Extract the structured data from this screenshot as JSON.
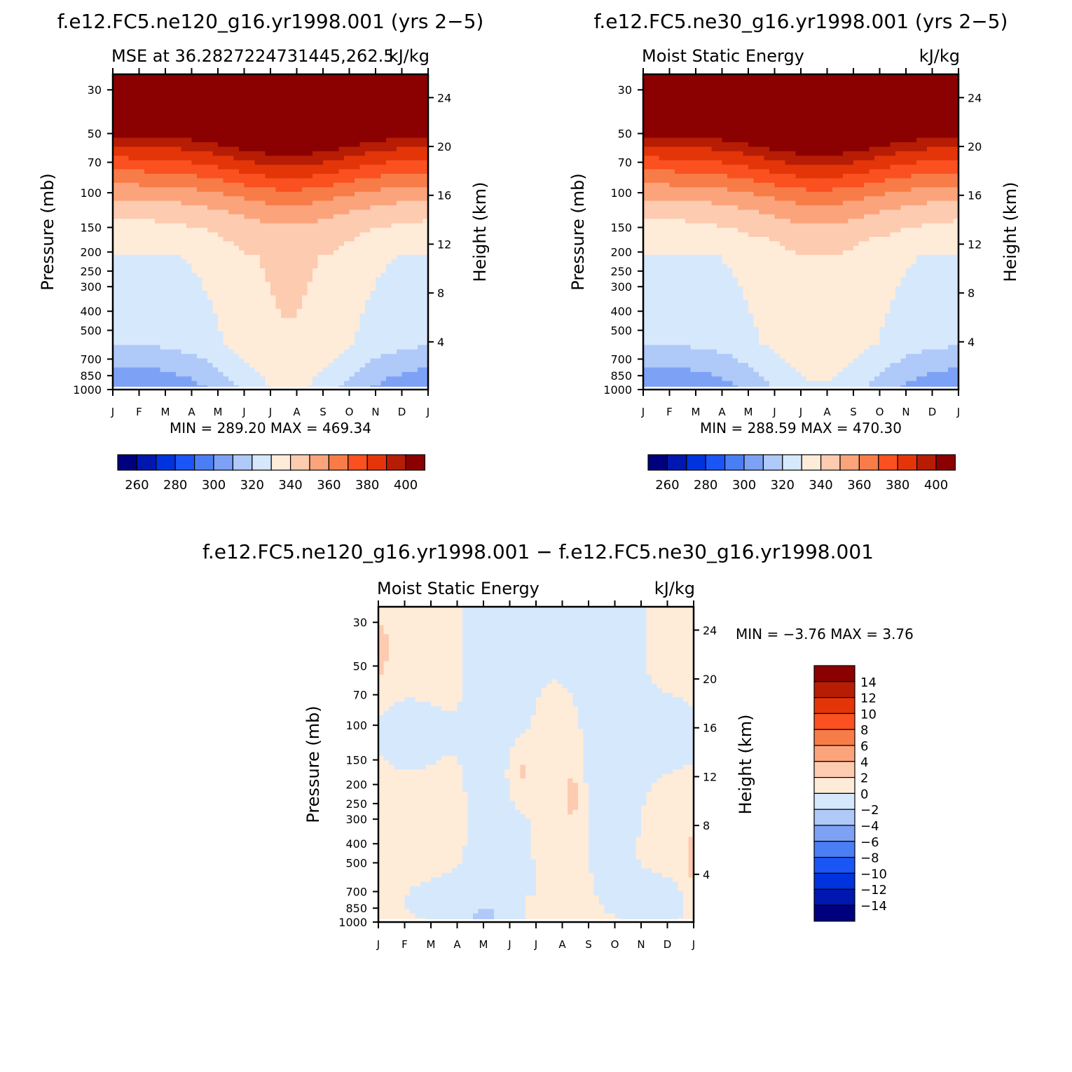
{
  "colors": {
    "abs_palette": [
      "#00007f",
      "#0018b0",
      "#0033dd",
      "#1a55f5",
      "#4b7ef5",
      "#7da2f5",
      "#afc9f8",
      "#d6e8fc",
      "#feebd8",
      "#fdcbb0",
      "#fba47c",
      "#f87c48",
      "#fb5020",
      "#e43509",
      "#b71d05",
      "#8b0000"
    ],
    "diff_palette": [
      "#00007f",
      "#0018b0",
      "#0033dd",
      "#1a55f5",
      "#4b7ef5",
      "#7da2f5",
      "#afc9f8",
      "#d6e8fc",
      "#feebd8",
      "#fdcbb0",
      "#fba47c",
      "#f87c48",
      "#fb5020",
      "#e43509",
      "#b71d05",
      "#8b0000"
    ]
  },
  "chart_data": [
    {
      "type": "contour",
      "panel_title": "f.e12.FC5.ne120_g16.yr1998.001 (yrs 2−5)",
      "left_title": "MSE at 36.2827224731445,262.5",
      "right_title": "kJ/kg",
      "ylabel": "Pressure (mb)",
      "ylabel_right": "Height (km)",
      "x_ticks": [
        "J",
        "F",
        "M",
        "A",
        "M",
        "J",
        "J",
        "A",
        "S",
        "O",
        "N",
        "D",
        "J"
      ],
      "y_ticks": [
        "30",
        "50",
        "70",
        "100",
        "150",
        "200",
        "250",
        "300",
        "400",
        "500",
        "700",
        "850",
        "1000"
      ],
      "y_ticks_right": [
        "24",
        "20",
        "16",
        "12",
        "8",
        "4"
      ],
      "stats": "MIN = 289.20 MAX = 469.34",
      "min": 289.2,
      "max": 469.34,
      "colorbar_labels": [
        "260",
        "280",
        "300",
        "320",
        "340",
        "360",
        "380",
        "400"
      ],
      "colorbar_levels": [
        250,
        260,
        270,
        280,
        290,
        300,
        310,
        320,
        330,
        340,
        350,
        360,
        370,
        380,
        390,
        400
      ]
    },
    {
      "type": "contour",
      "panel_title": "f.e12.FC5.ne30_g16.yr1998.001 (yrs 2−5)",
      "left_title": "Moist Static Energy",
      "right_title": "kJ/kg",
      "ylabel": "Pressure (mb)",
      "ylabel_right": "Height (km)",
      "x_ticks": [
        "J",
        "F",
        "M",
        "A",
        "M",
        "J",
        "J",
        "A",
        "S",
        "O",
        "N",
        "D",
        "J"
      ],
      "y_ticks": [
        "30",
        "50",
        "70",
        "100",
        "150",
        "200",
        "250",
        "300",
        "400",
        "500",
        "700",
        "850",
        "1000"
      ],
      "y_ticks_right": [
        "24",
        "20",
        "16",
        "12",
        "8",
        "4"
      ],
      "stats": "MIN = 288.59 MAX = 470.30",
      "min": 288.59,
      "max": 470.3,
      "colorbar_labels": [
        "260",
        "280",
        "300",
        "320",
        "340",
        "360",
        "380",
        "400"
      ],
      "colorbar_levels": [
        250,
        260,
        270,
        280,
        290,
        300,
        310,
        320,
        330,
        340,
        350,
        360,
        370,
        380,
        390,
        400
      ]
    },
    {
      "type": "contour",
      "panel_title": "f.e12.FC5.ne120_g16.yr1998.001 − f.e12.FC5.ne30_g16.yr1998.001",
      "left_title": "Moist Static Energy",
      "right_title": "kJ/kg",
      "ylabel": "Pressure (mb)",
      "ylabel_right": "Height (km)",
      "x_ticks": [
        "J",
        "F",
        "M",
        "A",
        "M",
        "J",
        "J",
        "A",
        "S",
        "O",
        "N",
        "D",
        "J"
      ],
      "y_ticks": [
        "30",
        "50",
        "70",
        "100",
        "150",
        "200",
        "250",
        "300",
        "400",
        "500",
        "700",
        "850",
        "1000"
      ],
      "y_ticks_right": [
        "24",
        "20",
        "16",
        "12",
        "8",
        "4"
      ],
      "stats": "MIN =   −3.76 MAX =    3.76",
      "min": -3.76,
      "max": 3.76,
      "colorbar_labels": [
        "14",
        "12",
        "10",
        "8",
        "6",
        "4",
        "2",
        "0",
        "−2",
        "−4",
        "−6",
        "−8",
        "−10",
        "−12",
        "−14"
      ],
      "colorbar_levels": [
        -14,
        -12,
        -10,
        -8,
        -6,
        -4,
        -2,
        0,
        2,
        4,
        6,
        8,
        10,
        12,
        14
      ]
    }
  ]
}
